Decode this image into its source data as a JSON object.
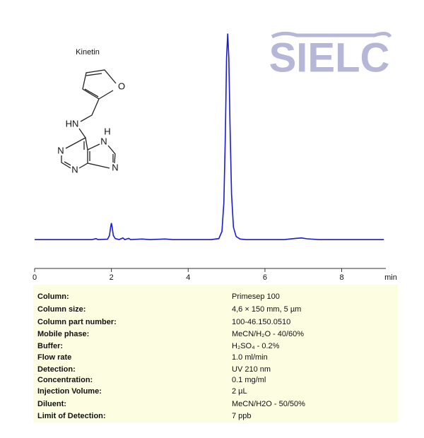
{
  "chart_data": {
    "type": "line",
    "x_label": "min",
    "color": "#1a1ad8",
    "x": [
      0,
      1.5,
      1.6,
      1.65,
      1.9,
      1.95,
      1.98,
      2.0,
      2.02,
      2.05,
      2.1,
      2.2,
      2.3,
      2.35,
      2.45,
      2.5,
      2.8,
      3.0,
      3.4,
      3.6,
      4.6,
      4.8,
      4.88,
      4.93,
      4.97,
      5.0,
      5.03,
      5.06,
      5.09,
      5.13,
      5.18,
      5.25,
      5.35,
      5.5,
      6.5,
      6.8,
      6.95,
      7.1,
      7.4,
      9.1
    ],
    "values": [
      0,
      0,
      5,
      0,
      2,
      20,
      60,
      80,
      60,
      20,
      5,
      0,
      8,
      0,
      6,
      0,
      3,
      0,
      3,
      0,
      0,
      5,
      40,
      180,
      520,
      880,
      1000,
      880,
      560,
      220,
      60,
      15,
      3,
      0,
      0,
      6,
      8,
      4,
      0,
      0
    ],
    "xlim": [
      0,
      9.15
    ],
    "xticks": [
      0,
      2,
      4,
      6,
      8
    ],
    "ylim": [
      -140,
      1060
    ]
  },
  "logo": "SIELC",
  "structure": {
    "name": "Kinetin",
    "atoms": [
      "O",
      "HN",
      "N",
      "N",
      "H",
      "N",
      "N"
    ]
  },
  "table": {
    "rows": [
      [
        "Column:",
        "Primesep 100"
      ],
      [
        "Column size:",
        "4,6 × 150 mm, 5 µm"
      ],
      [
        "Column part number:",
        "100-46.150.0510"
      ],
      [
        "Mobile phase:",
        "MeCN/H₂O - 40/60%"
      ],
      [
        "Buffer:",
        "H₂SO₄  - 0.2%"
      ],
      [
        "Flow rate",
        "1.0 ml/min"
      ],
      [
        "Detection:",
        "UV 210 nm"
      ],
      [
        "Concentration:",
        "0.1 mg/ml"
      ],
      [
        "Injection Volume:",
        "2 µL"
      ],
      [
        "Diluent:",
        "MeCN/H2O - 50/50%"
      ],
      [
        "Limit of Detection:",
        "7 ppb"
      ]
    ]
  }
}
